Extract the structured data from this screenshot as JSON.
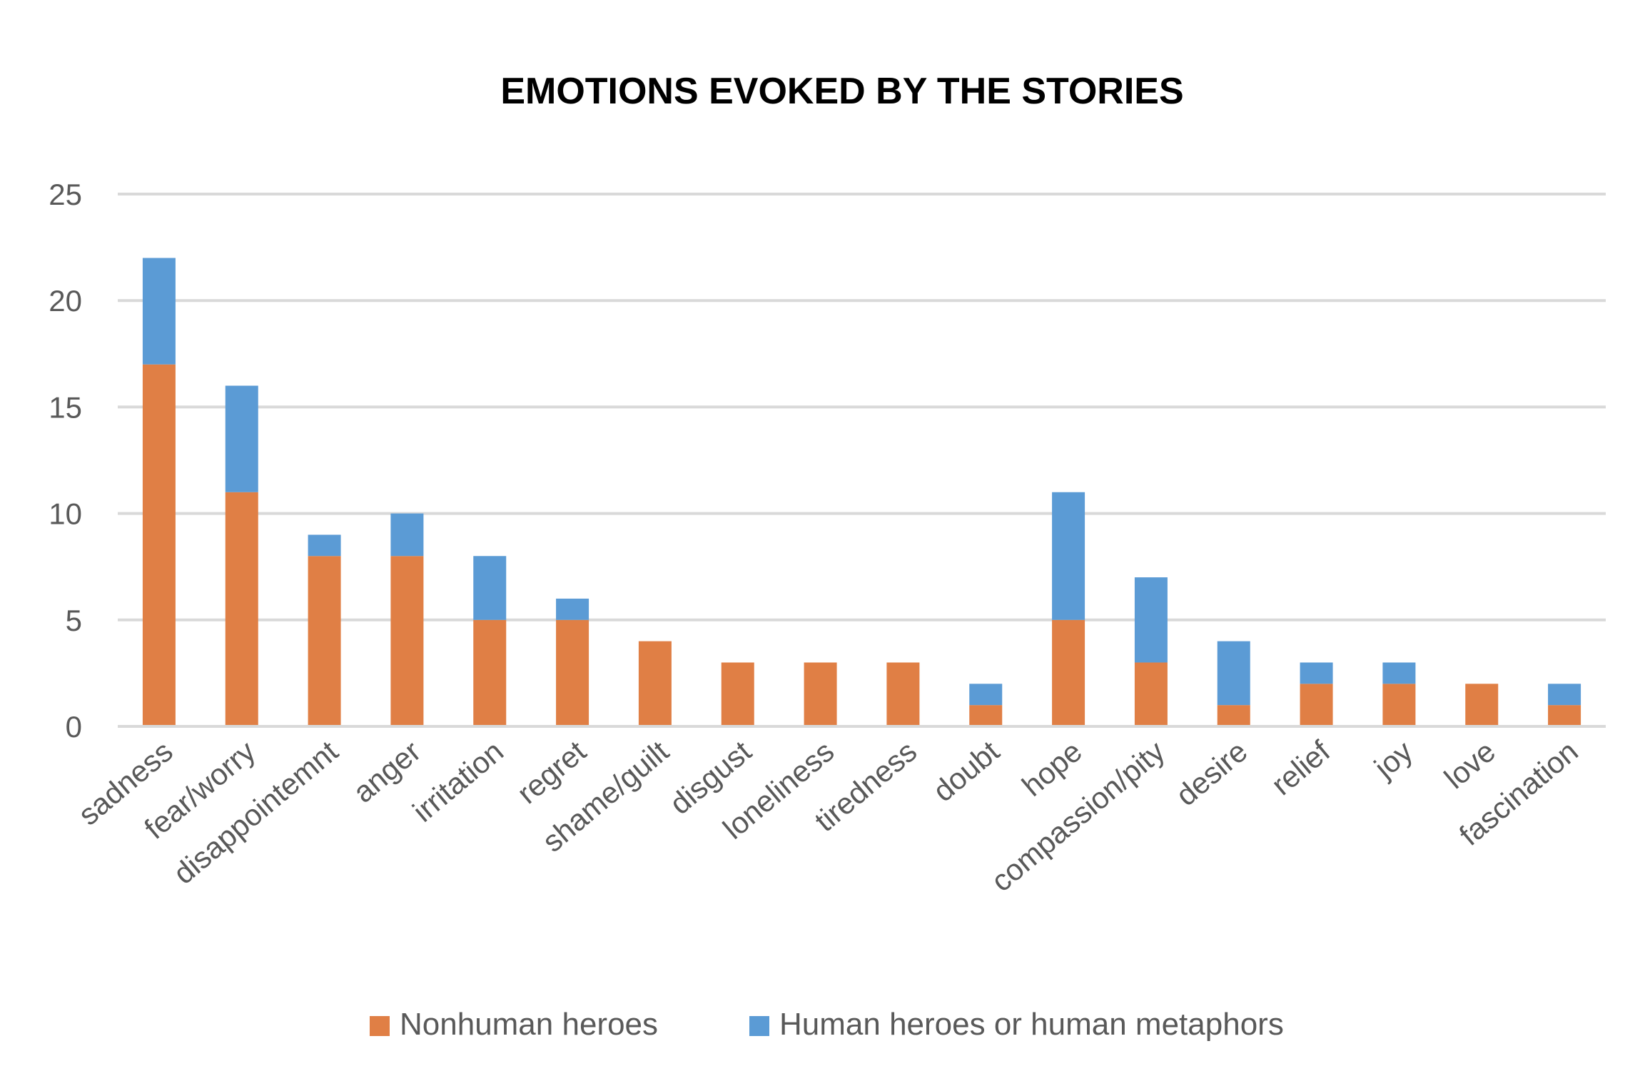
{
  "chart_data": {
    "type": "bar",
    "stacked": true,
    "title": "EMOTIONS EVOKED BY THE STORIES",
    "xlabel": "",
    "ylabel": "",
    "ylim": [
      0,
      25
    ],
    "yticks": [
      "0",
      "5",
      "10",
      "15",
      "20",
      "25"
    ],
    "grid": true,
    "legend_position": "bottom",
    "categories": [
      "sadness",
      "fear/worry",
      "disappointemnt",
      "anger",
      "irritation",
      "regret",
      "shame/guilt",
      "disgust",
      "loneliness",
      "tiredness",
      "doubt",
      "hope",
      "compassion/pity",
      "desire",
      "relief",
      "joy",
      "love",
      "fascination"
    ],
    "series": [
      {
        "name": "Nonhuman heroes",
        "color": "#E07F45",
        "values": [
          17,
          11,
          8,
          8,
          5,
          5,
          4,
          3,
          3,
          3,
          1,
          5,
          3,
          1,
          2,
          2,
          2,
          1
        ]
      },
      {
        "name": "Human heroes or human metaphors",
        "color": "#5B9BD5",
        "values": [
          5,
          5,
          1,
          2,
          3,
          1,
          0,
          0,
          0,
          0,
          1,
          6,
          4,
          3,
          1,
          1,
          0,
          1
        ]
      }
    ]
  }
}
